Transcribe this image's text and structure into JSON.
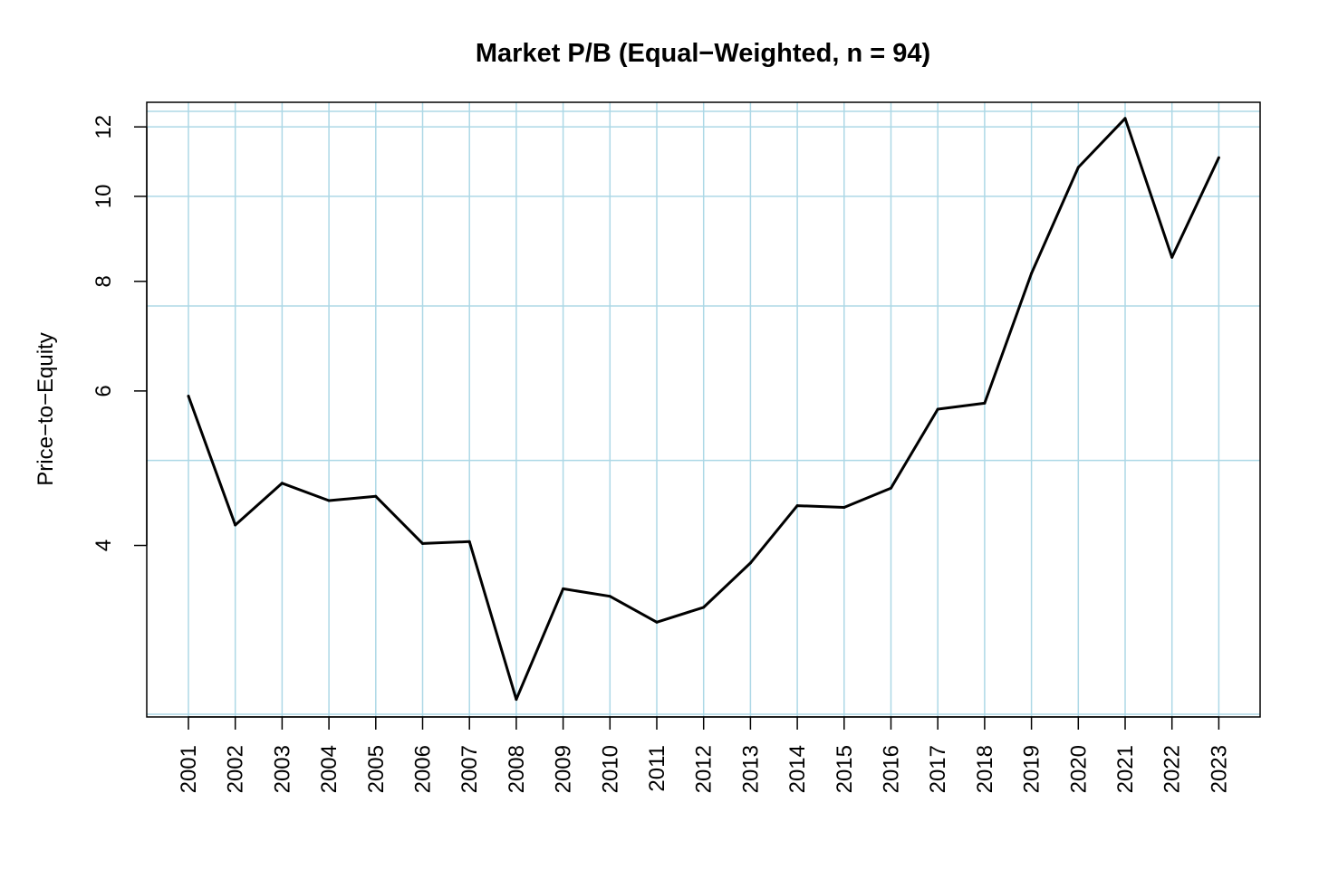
{
  "chart_data": {
    "type": "line",
    "title": "Market P/B (Equal−Weighted, n = 94)",
    "xlabel": "",
    "ylabel": "Price−to−Equity",
    "y_scale": "log",
    "ylim": [
      2.55,
      12.8
    ],
    "y_ticks": [
      4,
      6,
      8,
      10,
      12
    ],
    "y_gridlines": [
      5,
      7.5,
      12.5
    ],
    "grid": true,
    "grid_color": "#add8e6",
    "line_color": "#000000",
    "categories": [
      "2001",
      "2002",
      "2003",
      "2004",
      "2005",
      "2006",
      "2007",
      "2008",
      "2009",
      "2010",
      "2011",
      "2012",
      "2013",
      "2014",
      "2015",
      "2016",
      "2017",
      "2018",
      "2019",
      "2020",
      "2021",
      "2022",
      "2023"
    ],
    "series": [
      {
        "values": [
          5.92,
          4.22,
          4.71,
          4.5,
          4.55,
          4.02,
          4.04,
          2.67,
          3.57,
          3.5,
          3.27,
          3.4,
          3.82,
          4.44,
          4.42,
          4.65,
          5.72,
          5.81,
          8.17,
          10.79,
          12.27,
          8.52,
          11.07
        ]
      }
    ]
  }
}
